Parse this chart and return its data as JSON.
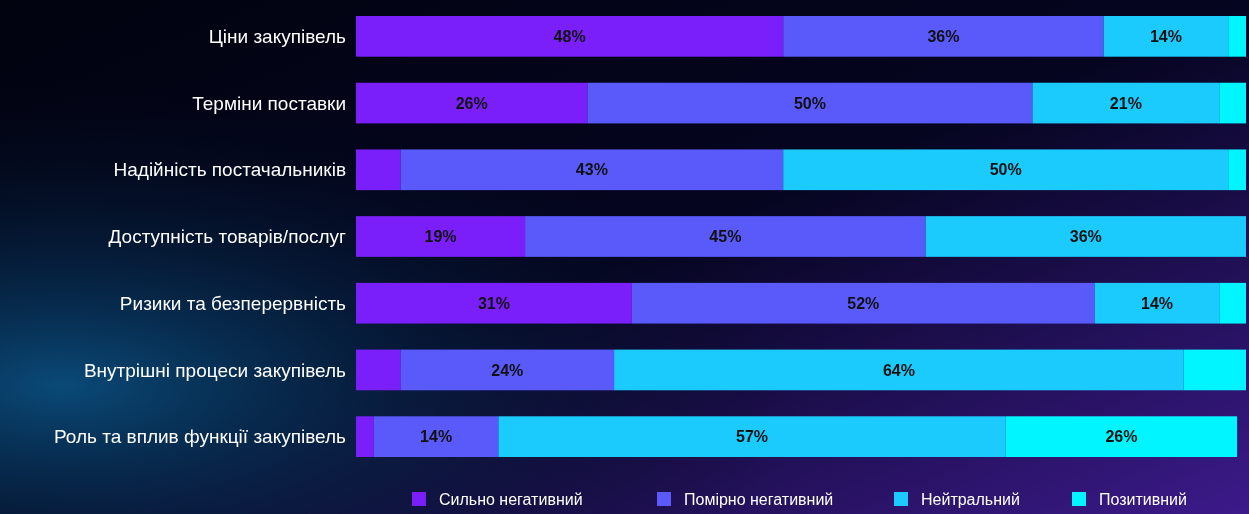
{
  "chart_data": {
    "type": "bar",
    "orientation": "horizontal",
    "stacked": true,
    "categories": [
      "Ціни закупівель",
      "Терміни поставки",
      "Надійність постачальників",
      "Доступність товарів/послуг",
      "Ризики та безперервність",
      "Внутрішні процеси закупівель",
      "Роль та вплив функції закупівель"
    ],
    "xlim": [
      0,
      100
    ],
    "tick_labels": "y",
    "legend": "bottom",
    "series": [
      {
        "name": "Сильно негативний",
        "color": "#7a1ff9",
        "values": [
          48,
          26,
          5,
          19,
          31,
          5,
          2
        ],
        "value_labels": [
          "48%",
          "26%",
          null,
          "19%",
          "31%",
          null,
          null
        ]
      },
      {
        "name": "Помірно негативний",
        "color": "#5a5afb",
        "values": [
          36,
          50,
          43,
          45,
          52,
          24,
          14
        ],
        "value_labels": [
          "36%",
          "50%",
          "43%",
          "45%",
          "52%",
          "24%",
          "14%"
        ]
      },
      {
        "name": "Нейтральний",
        "color": "#1ccbfd",
        "values": [
          14,
          21,
          50,
          36,
          14,
          64,
          57
        ],
        "value_labels": [
          "14%",
          "21%",
          "50%",
          "36%",
          "14%",
          "64%",
          "57%"
        ]
      },
      {
        "name": "Позитивний",
        "color": "#00f5ff",
        "values": [
          2,
          3,
          2,
          0,
          3,
          7,
          26
        ],
        "value_labels": [
          null,
          null,
          null,
          null,
          null,
          null,
          "26%"
        ]
      }
    ]
  }
}
